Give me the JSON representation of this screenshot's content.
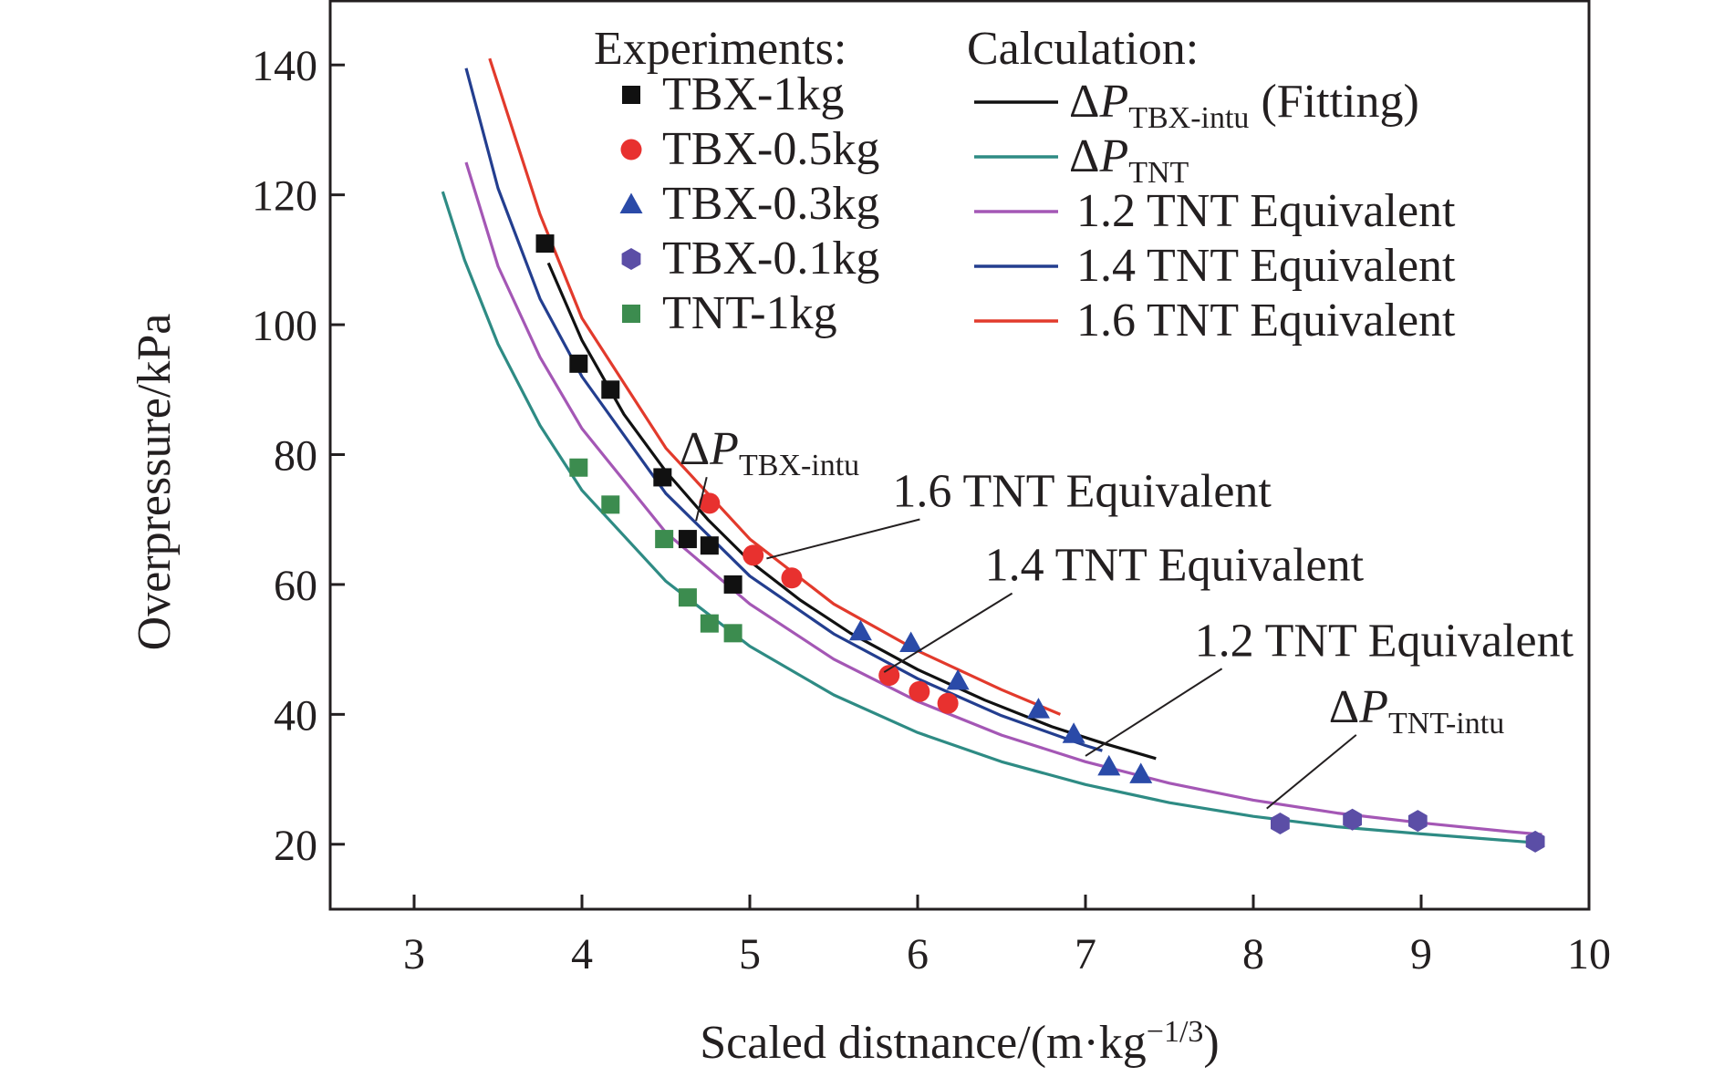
{
  "chart_data": {
    "type": "scatter",
    "xlabel": "Scaled distnance/(m·kg",
    "xlabel_sup": "−1/3",
    "xlabel_close": ")",
    "ylabel": "Overpressure/kPa",
    "xlim": [
      2.5,
      10.0
    ],
    "ylim": [
      10,
      150
    ],
    "xticks": [
      3,
      4,
      5,
      6,
      7,
      8,
      9,
      10
    ],
    "yticks": [
      20,
      40,
      60,
      80,
      100,
      120,
      140
    ],
    "grid": false,
    "legend": {
      "experiments_title": "Experiments:",
      "calculation_title": "Calculation:",
      "placement": "top-right"
    },
    "experiments": [
      {
        "name": "TBX-1kg",
        "marker": "square",
        "color": "#111111",
        "points": [
          [
            3.78,
            112.5
          ],
          [
            3.98,
            94
          ],
          [
            4.17,
            90
          ],
          [
            4.48,
            76.5
          ],
          [
            4.63,
            67
          ],
          [
            4.76,
            66
          ],
          [
            4.9,
            60
          ]
        ]
      },
      {
        "name": "TBX-0.5kg",
        "marker": "circle",
        "color": "#e8312f",
        "points": [
          [
            4.76,
            72.5
          ],
          [
            5.02,
            64.5
          ],
          [
            5.25,
            61
          ],
          [
            5.83,
            46
          ],
          [
            6.01,
            43.5
          ],
          [
            6.18,
            41.7
          ]
        ]
      },
      {
        "name": "TBX-0.3kg",
        "marker": "triangle",
        "color": "#2a4aa8",
        "points": [
          [
            5.66,
            52.8
          ],
          [
            5.96,
            51
          ],
          [
            6.24,
            45.2
          ],
          [
            6.72,
            40.8
          ],
          [
            6.93,
            37
          ],
          [
            7.14,
            32
          ],
          [
            7.33,
            30.8
          ]
        ]
      },
      {
        "name": "TBX-0.1kg",
        "marker": "hexagon",
        "color": "#5b4ea6",
        "points": [
          [
            8.16,
            23.2
          ],
          [
            8.59,
            23.8
          ],
          [
            8.98,
            23.6
          ],
          [
            9.68,
            20.4
          ]
        ]
      },
      {
        "name": "TNT-1kg",
        "marker": "square",
        "color": "#3c8c4f",
        "points": [
          [
            3.98,
            78
          ],
          [
            4.17,
            72.3
          ],
          [
            4.49,
            67
          ],
          [
            4.63,
            58
          ],
          [
            4.76,
            54
          ],
          [
            4.9,
            52.5
          ]
        ]
      }
    ],
    "calculation": [
      {
        "name_main": "ΔP",
        "name_sub": "TBX-intu",
        "name_suffix": " (Fitting)",
        "color": "#111111",
        "points": [
          [
            3.8,
            109.5
          ],
          [
            4.0,
            97.6
          ],
          [
            4.25,
            86.2
          ],
          [
            4.5,
            77.4
          ],
          [
            4.75,
            70
          ],
          [
            5.0,
            63.6
          ],
          [
            5.3,
            57.6
          ],
          [
            5.6,
            52.5
          ],
          [
            6.0,
            46.9
          ],
          [
            6.4,
            42.2
          ],
          [
            6.8,
            38.1
          ],
          [
            7.1,
            35.6
          ],
          [
            7.42,
            33.2
          ]
        ]
      },
      {
        "name_main": "ΔP",
        "name_sub": "TNT",
        "name_suffix": "",
        "color": "#2e8b84",
        "points": [
          [
            3.17,
            120.5
          ],
          [
            3.3,
            110
          ],
          [
            3.5,
            97
          ],
          [
            3.75,
            84.5
          ],
          [
            4.0,
            74.5
          ],
          [
            4.5,
            60.5
          ],
          [
            5.0,
            50.5
          ],
          [
            5.5,
            43
          ],
          [
            6.0,
            37.2
          ],
          [
            6.5,
            32.7
          ],
          [
            7.0,
            29.2
          ],
          [
            7.5,
            26.4
          ],
          [
            8.0,
            24.3
          ],
          [
            8.5,
            22.7
          ],
          [
            9.0,
            21.6
          ],
          [
            9.5,
            20.6
          ],
          [
            9.7,
            20.2
          ]
        ]
      },
      {
        "name_main": "1.2 TNT Equivalent",
        "name_sub": "",
        "name_suffix": "",
        "color": "#a457b5",
        "points": [
          [
            3.31,
            125
          ],
          [
            3.5,
            109
          ],
          [
            3.75,
            95
          ],
          [
            4.0,
            84
          ],
          [
            4.5,
            68
          ],
          [
            5.0,
            57
          ],
          [
            5.5,
            48.5
          ],
          [
            6.0,
            42
          ],
          [
            6.5,
            36.8
          ],
          [
            7.0,
            32.7
          ],
          [
            7.5,
            29.4
          ],
          [
            8.0,
            26.8
          ],
          [
            8.5,
            24.8
          ],
          [
            9.0,
            23.3
          ],
          [
            9.5,
            22
          ],
          [
            9.72,
            21.5
          ]
        ]
      },
      {
        "name_main": "1.4 TNT Equivalent",
        "name_sub": "",
        "name_suffix": "",
        "color": "#233e8f",
        "points": [
          [
            3.31,
            139.5
          ],
          [
            3.5,
            121
          ],
          [
            3.75,
            104
          ],
          [
            4.0,
            92
          ],
          [
            4.5,
            74
          ],
          [
            5.0,
            61.3
          ],
          [
            5.5,
            52.4
          ],
          [
            6.0,
            45.5
          ],
          [
            6.5,
            39.8
          ],
          [
            7.0,
            35.2
          ],
          [
            7.1,
            34.4
          ]
        ]
      },
      {
        "name_main": "1.6 TNT Equivalent",
        "name_sub": "",
        "name_suffix": "",
        "color": "#e23a2c",
        "points": [
          [
            3.45,
            141
          ],
          [
            3.75,
            117
          ],
          [
            4.0,
            101
          ],
          [
            4.5,
            81
          ],
          [
            5.0,
            67
          ],
          [
            5.5,
            57
          ],
          [
            6.0,
            49.8
          ],
          [
            6.5,
            43.8
          ],
          [
            6.85,
            40
          ]
        ]
      }
    ],
    "annotations": [
      {
        "main": "ΔP",
        "sub": "TBX-intu",
        "xy": [
          4.68,
          69.8
        ],
        "text_xy": [
          4.58,
          78.5
        ]
      },
      {
        "main": "1.6 TNT Equivalent",
        "sub": "",
        "xy": [
          5.1,
          64
        ],
        "text_xy": [
          5.85,
          72
        ]
      },
      {
        "main": "1.4 TNT Equivalent",
        "sub": "",
        "xy": [
          5.8,
          46.5
        ],
        "text_xy": [
          6.4,
          60.6
        ]
      },
      {
        "main": "1.2 TNT Equivalent",
        "sub": "",
        "xy": [
          7.0,
          33.6
        ],
        "text_xy": [
          7.65,
          49
        ]
      },
      {
        "main": "ΔP",
        "sub": "TNT-intu",
        "xy": [
          8.08,
          25.5
        ],
        "text_xy": [
          8.45,
          38.8
        ]
      }
    ]
  }
}
